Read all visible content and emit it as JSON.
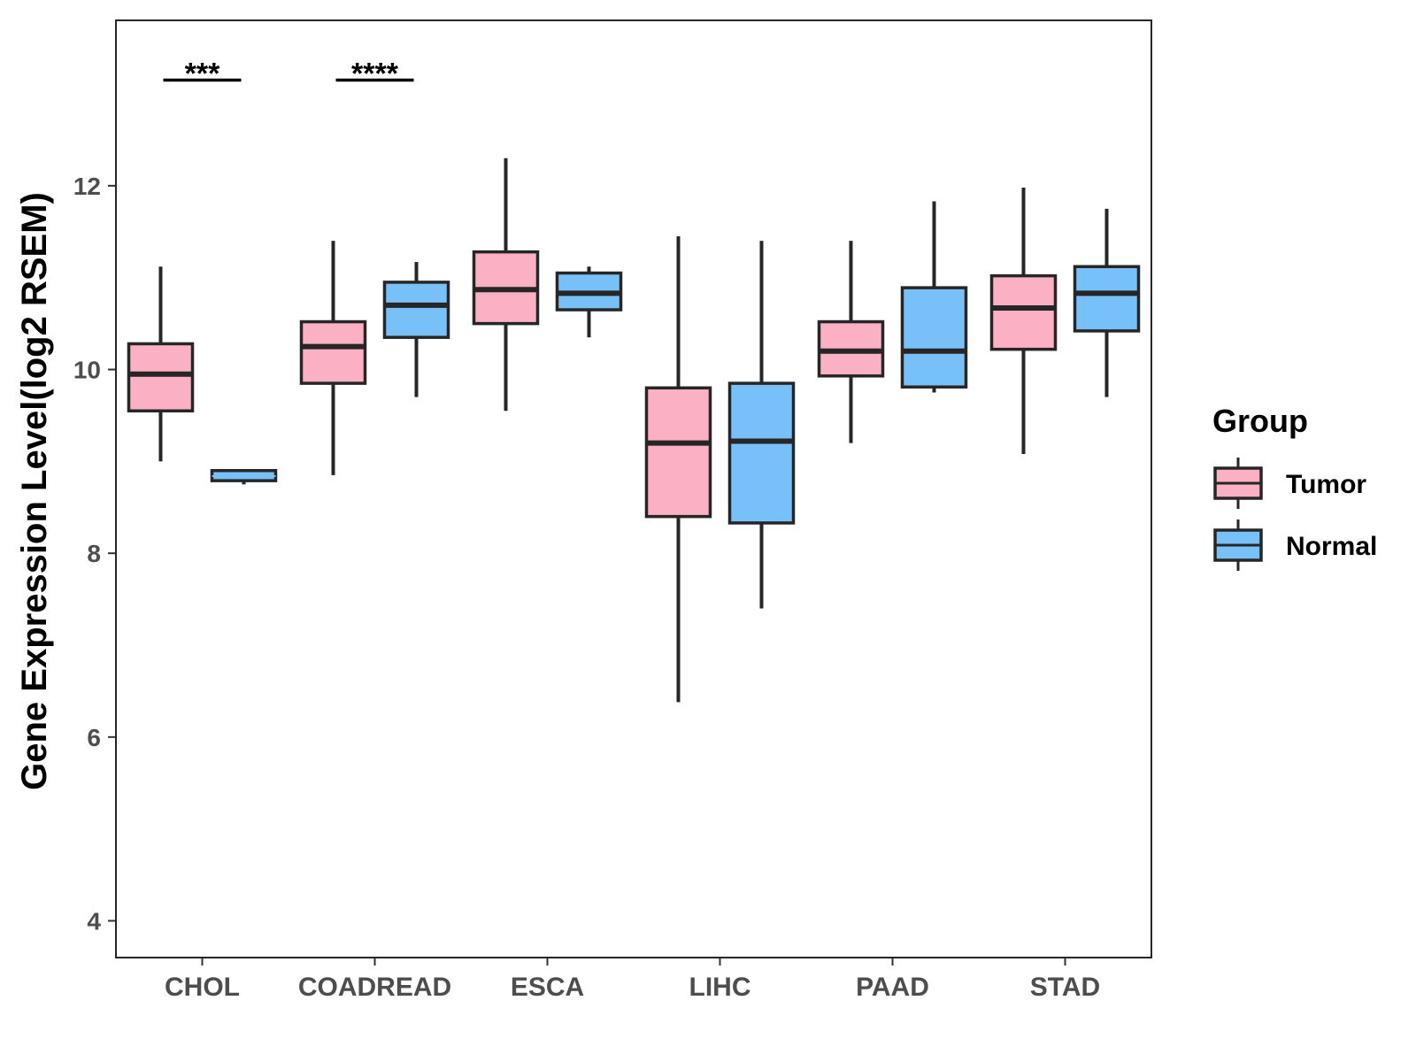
{
  "chart_data": {
    "type": "boxplot",
    "title": "",
    "xlabel": "",
    "ylabel": "Gene Expression Level(log2 RSEM)",
    "ylim": [
      3.6,
      13.8
    ],
    "yticks": [
      4,
      6,
      8,
      10,
      12
    ],
    "grid": false,
    "categories": [
      "CHOL",
      "COADREAD",
      "ESCA",
      "LIHC",
      "PAAD",
      "STAD"
    ],
    "legend": {
      "title": "Group",
      "position": "right",
      "entries": [
        "Tumor",
        "Normal"
      ]
    },
    "colors": {
      "Tumor": "#FBB1C3",
      "Normal": "#78C0F8",
      "outline": "#262626"
    },
    "series": [
      {
        "name": "Tumor",
        "boxes": [
          {
            "category": "CHOL",
            "min": 9.0,
            "q1": 9.55,
            "median": 9.95,
            "q3": 10.28,
            "max": 11.12
          },
          {
            "category": "COADREAD",
            "min": 8.85,
            "q1": 9.85,
            "median": 10.25,
            "q3": 10.52,
            "max": 11.4
          },
          {
            "category": "ESCA",
            "min": 9.55,
            "q1": 10.5,
            "median": 10.87,
            "q3": 11.28,
            "max": 12.3
          },
          {
            "category": "LIHC",
            "min": 6.38,
            "q1": 8.4,
            "median": 9.2,
            "q3": 9.8,
            "max": 11.45
          },
          {
            "category": "PAAD",
            "min": 9.2,
            "q1": 9.93,
            "median": 10.2,
            "q3": 10.52,
            "max": 11.4
          },
          {
            "category": "STAD",
            "min": 9.08,
            "q1": 10.22,
            "median": 10.67,
            "q3": 11.02,
            "max": 11.98
          }
        ]
      },
      {
        "name": "Normal",
        "boxes": [
          {
            "category": "CHOL",
            "min": 8.75,
            "q1": 8.79,
            "median": 8.84,
            "q3": 8.9,
            "max": 8.9
          },
          {
            "category": "COADREAD",
            "min": 9.7,
            "q1": 10.35,
            "median": 10.7,
            "q3": 10.95,
            "max": 11.17
          },
          {
            "category": "ESCA",
            "min": 10.35,
            "q1": 10.65,
            "median": 10.83,
            "q3": 11.05,
            "max": 11.12
          },
          {
            "category": "LIHC",
            "min": 7.4,
            "q1": 8.33,
            "median": 9.22,
            "q3": 9.85,
            "max": 11.4
          },
          {
            "category": "PAAD",
            "min": 9.75,
            "q1": 9.81,
            "median": 10.2,
            "q3": 10.89,
            "max": 11.83
          },
          {
            "category": "STAD",
            "min": 9.7,
            "q1": 10.42,
            "median": 10.83,
            "q3": 11.12,
            "max": 11.75
          }
        ]
      }
    ],
    "annotations": [
      {
        "category": "CHOL",
        "text": "***",
        "y": 13.15
      },
      {
        "category": "COADREAD",
        "text": "****",
        "y": 13.15
      }
    ]
  }
}
